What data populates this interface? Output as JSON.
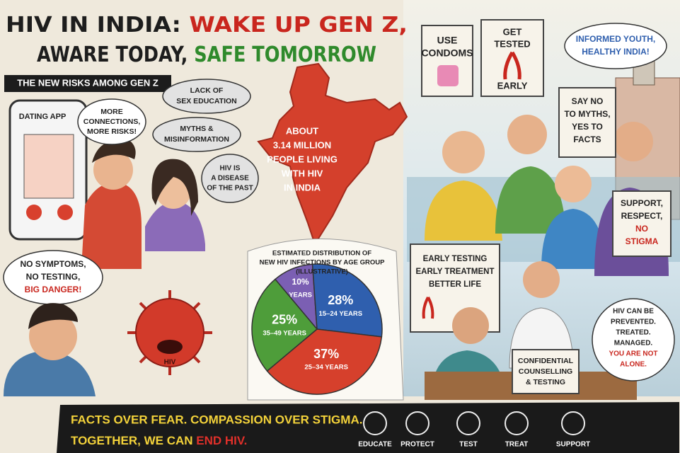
{
  "title": {
    "part1": "HIV IN INDIA:",
    "part2": "WAKE UP GEN Z,",
    "part3": "AWARE TODAY,",
    "part4": "SAFE TOMORROW"
  },
  "risks": {
    "heading": "THE NEW RISKS AMONG GEN Z",
    "app": "DATING APP",
    "bubbles": [
      [
        "MORE",
        "CONNECTIONS,",
        "MORE RISKS!"
      ],
      [
        "LACK OF",
        "SEX EDUCATION"
      ],
      [
        "MYTHS &",
        "MISINFORMATION"
      ],
      [
        "HIV IS",
        "A DISEASE",
        "OF THE PAST"
      ]
    ],
    "worry": [
      "NO SYMPTOMS,",
      "NO TESTING,",
      "BIG DANGER!"
    ],
    "virus": "HIV"
  },
  "map": {
    "lines": [
      "ABOUT",
      "3.14 MILLION",
      "PEOPLE LIVING",
      "WITH HIV",
      "IN INDIA"
    ]
  },
  "chart_data": {
    "type": "pie",
    "title": [
      "ESTIMATED DISTRIBUTION OF",
      "NEW HIV INFECTIONS BY AGE GROUP",
      "(ILLUSTRATIVE)"
    ],
    "categories": [
      "YEARS",
      "15–24 YEARS",
      "25–34 YEARS",
      "35–49 YEARS"
    ],
    "values": [
      10,
      28,
      37,
      25
    ],
    "value_labels": [
      "10%",
      "28%",
      "37%",
      "25%"
    ],
    "colors": [
      "#7b5fb3",
      "#2f5fae",
      "#d6402c",
      "#4e9d3a"
    ]
  },
  "signs": {
    "condoms": [
      "USE",
      "CONDOMS"
    ],
    "tested": [
      "GET",
      "TESTED",
      "EARLY"
    ],
    "informed": [
      "INFORMED YOUTH,",
      "HEALTHY INDIA!"
    ],
    "myths": [
      "SAY NO",
      "TO MYTHS,",
      "YES TO",
      "FACTS"
    ],
    "support": [
      "SUPPORT,",
      "RESPECT,",
      "NO",
      "STIGMA"
    ]
  },
  "clinic": {
    "board": [
      "EARLY TESTING",
      "EARLY TREATMENT",
      "BETTER LIFE"
    ],
    "desk": [
      "CONFIDENTIAL",
      "COUNSELLING",
      "& TESTING"
    ],
    "bubble": [
      "HIV CAN BE",
      "PREVENTED.",
      "TREATED.",
      "MANAGED.",
      "YOU ARE NOT",
      "ALONE."
    ]
  },
  "footer": {
    "lines": [
      "FACTS OVER FEAR. COMPASSION OVER STIGMA.",
      "TOGETHER, WE CAN"
    ],
    "end": "END HIV.",
    "actions": [
      "EDUCATE",
      "PROTECT",
      "TEST",
      "TREAT",
      "SUPPORT"
    ]
  }
}
